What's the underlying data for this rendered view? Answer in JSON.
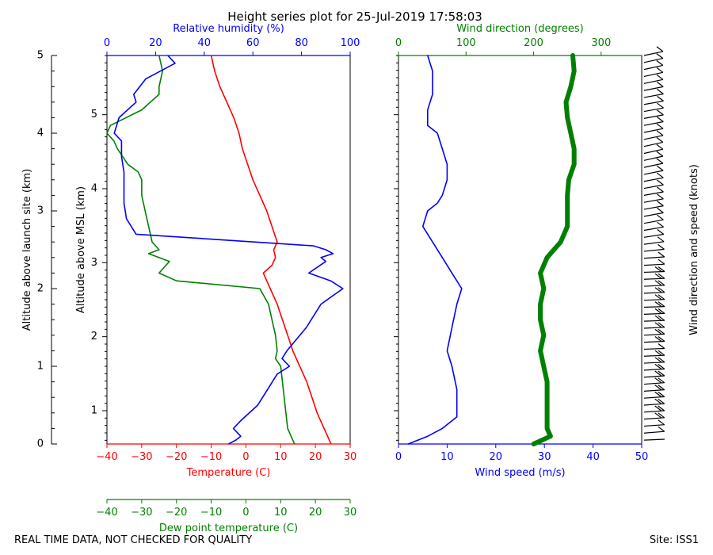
{
  "title": "Height series plot for 25-Jul-2019 17:58:03",
  "footer_left": "REAL TIME DATA, NOT CHECKED FOR QUALITY",
  "footer_right": "Site: ISS1",
  "colors": {
    "temperature": "#ff0000",
    "dewpoint": "#008000",
    "rh": "#0000ff",
    "wind_speed": "#0000ff",
    "wind_dir": "#008000",
    "axis": "#000000"
  },
  "chart_data": [
    {
      "type": "line",
      "panel": "thermo",
      "ylabel_outer": "Altitude above launch site (km)",
      "ylabel_inner": "Altitude above MSL (km)",
      "ylim_outer": [
        0,
        5
      ],
      "yticks_outer": [
        0,
        1,
        2,
        3,
        4,
        5
      ],
      "ylim_inner": [
        0.55,
        5.8
      ],
      "yticks_inner": [
        1,
        2,
        3,
        4,
        5
      ],
      "axes": {
        "temperature": {
          "label": "Temperature (C)",
          "range": [
            -40,
            30
          ],
          "ticks": [
            -40,
            -30,
            -20,
            -10,
            0,
            10,
            20,
            30
          ]
        },
        "dewpoint": {
          "label": "Dew point temperature (C)",
          "range": [
            -40,
            30
          ],
          "ticks": [
            -40,
            -30,
            -20,
            -10,
            0,
            10,
            20,
            30
          ]
        },
        "rh": {
          "label": "Relative humidity (%)",
          "range": [
            0,
            100
          ],
          "ticks": [
            0,
            20,
            40,
            60,
            80,
            100
          ]
        }
      },
      "series": [
        {
          "name": "Temperature",
          "axis": "temperature",
          "color": "#ff0000",
          "alt": [
            0,
            0.1,
            0.2,
            0.4,
            0.6,
            0.8,
            1.0,
            1.2,
            1.4,
            1.6,
            1.8,
            2.0,
            2.1,
            2.2,
            2.3,
            2.4,
            2.5,
            2.6,
            2.8,
            3.0,
            3.2,
            3.4,
            3.6,
            3.8,
            4.0,
            4.2,
            4.4,
            4.6,
            4.8,
            5.0
          ],
          "values": [
            24.5,
            23.5,
            22.5,
            20.5,
            19,
            17.5,
            15.5,
            13.5,
            12,
            10.5,
            9,
            7,
            6,
            5,
            7.5,
            8.5,
            8,
            9,
            7.5,
            6,
            4,
            2,
            0.5,
            -1,
            -2,
            -3.5,
            -5.5,
            -7.5,
            -9,
            -10
          ]
        },
        {
          "name": "Dew point",
          "axis": "dewpoint",
          "color": "#008000",
          "alt": [
            0,
            0.1,
            0.2,
            0.4,
            0.6,
            0.8,
            1.0,
            1.1,
            1.2,
            1.4,
            1.6,
            1.8,
            2.0,
            2.1,
            2.2,
            2.35,
            2.45,
            2.5,
            2.55,
            2.6,
            2.8,
            3.0,
            3.2,
            3.4,
            3.5,
            3.6,
            3.8,
            3.9,
            4.0,
            4.1,
            4.3,
            4.5,
            4.6,
            4.8,
            5.0
          ],
          "values": [
            14,
            13,
            12,
            11.5,
            11,
            10.5,
            10,
            8.5,
            9,
            8.5,
            7.5,
            6.5,
            4,
            -20,
            -25,
            -22,
            -28,
            -25,
            -26,
            -27,
            -28,
            -29,
            -30,
            -30,
            -31,
            -34,
            -37,
            -38,
            -40,
            -39,
            -30,
            -25,
            -25,
            -24,
            -25
          ]
        },
        {
          "name": "Relative humidity",
          "axis": "rh",
          "color": "#0000ff",
          "alt": [
            0,
            0.05,
            0.1,
            0.2,
            0.3,
            0.5,
            0.7,
            0.9,
            1.0,
            1.1,
            1.2,
            1.5,
            1.8,
            2.0,
            2.1,
            2.2,
            2.35,
            2.4,
            2.45,
            2.5,
            2.55,
            2.7,
            2.9,
            3.1,
            3.3,
            3.5,
            3.7,
            3.9,
            4.0,
            4.2,
            4.4,
            4.5,
            4.7,
            4.9,
            5.0
          ],
          "values": [
            50,
            53,
            55,
            52,
            55,
            62,
            66,
            70,
            75,
            72,
            74,
            82,
            88,
            97,
            92,
            83,
            90,
            88,
            93,
            90,
            85,
            12,
            8,
            7,
            7,
            7,
            6,
            6,
            3,
            5,
            12,
            11,
            16,
            28,
            25
          ]
        }
      ]
    },
    {
      "type": "line",
      "panel": "wind",
      "axes": {
        "wind_speed": {
          "label": "Wind speed (m/s)",
          "range": [
            0,
            50
          ],
          "ticks": [
            0,
            10,
            20,
            30,
            40,
            50
          ]
        },
        "wind_direction": {
          "label": "Wind direction (degrees)",
          "range": [
            0,
            360
          ],
          "ticks": [
            0,
            100,
            200,
            300
          ]
        }
      },
      "series": [
        {
          "name": "Wind speed",
          "axis": "wind_speed",
          "color": "#0000ff",
          "alt": [
            0,
            0.1,
            0.2,
            0.35,
            0.5,
            0.7,
            1.0,
            1.2,
            1.5,
            1.8,
            2.0,
            2.2,
            2.4,
            2.6,
            2.8,
            3.0,
            3.1,
            3.2,
            3.4,
            3.6,
            3.8,
            4.0,
            4.1,
            4.3,
            4.5,
            4.6,
            4.8,
            5.0
          ],
          "values": [
            2,
            6,
            9,
            12,
            12,
            12,
            11,
            10,
            11,
            12,
            13,
            11,
            9,
            7,
            5,
            6,
            8,
            9,
            10,
            10,
            9,
            8,
            6,
            6,
            7,
            7,
            7,
            6
          ]
        },
        {
          "name": "Wind direction",
          "axis": "wind_direction",
          "color": "#008000",
          "thick": true,
          "alt": [
            0,
            0.1,
            0.2,
            0.4,
            0.6,
            0.8,
            1.0,
            1.2,
            1.4,
            1.6,
            1.8,
            2.0,
            2.2,
            2.4,
            2.6,
            2.8,
            3.0,
            3.2,
            3.4,
            3.6,
            3.8,
            4.0,
            4.2,
            4.4,
            4.6,
            4.8,
            5.0
          ],
          "values": [
            200,
            225,
            220,
            220,
            220,
            220,
            215,
            210,
            215,
            210,
            210,
            215,
            210,
            220,
            240,
            250,
            250,
            250,
            252,
            260,
            260,
            255,
            250,
            248,
            255,
            260,
            258
          ]
        }
      ]
    },
    {
      "type": "barbs",
      "panel": "wind_barbs",
      "label": "Wind direction and speed (knots)"
    }
  ]
}
